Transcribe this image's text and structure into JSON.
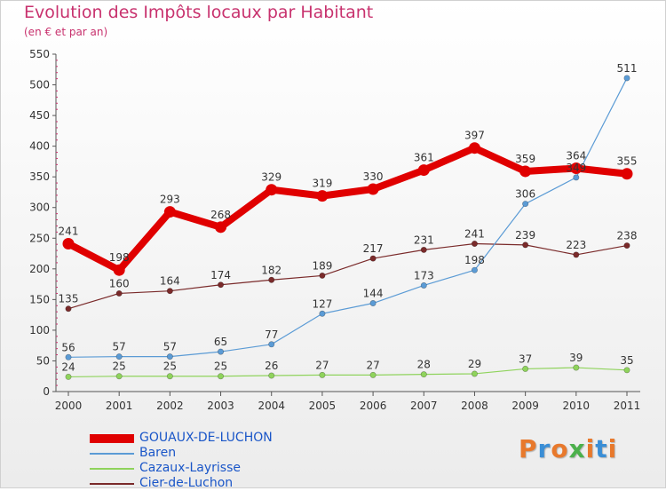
{
  "title": "Evolution des Impôts locaux par Habitant",
  "subtitle": "(en € et par an)",
  "logo": {
    "text": "Proxiti",
    "colors": [
      "#e8792c",
      "#3a8ed6",
      "#e8792c",
      "#4bb04b",
      "#e8792c",
      "#3a8ed6",
      "#e8792c"
    ]
  },
  "chart_data": {
    "type": "line",
    "x": [
      "2000",
      "2001",
      "2002",
      "2003",
      "2004",
      "2005",
      "2006",
      "2007",
      "2008",
      "2009",
      "2010",
      "2011"
    ],
    "ylim": [
      0,
      550
    ],
    "yticks": [
      0,
      50,
      100,
      150,
      200,
      250,
      300,
      350,
      400,
      450,
      500,
      550
    ],
    "grid": false,
    "legend_position": "bottom-left",
    "series": [
      {
        "name": "GOUAUX-DE-LUCHON",
        "color": "#e00000",
        "values": [
          241,
          198,
          293,
          268,
          329,
          319,
          330,
          361,
          397,
          359,
          364,
          355
        ]
      },
      {
        "name": "Baren",
        "color": "#5b9bd5",
        "values": [
          56,
          57,
          57,
          65,
          77,
          127,
          144,
          173,
          198,
          306,
          349,
          511
        ]
      },
      {
        "name": "Cazaux-Layrisse",
        "color": "#8fd35c",
        "values": [
          24,
          25,
          25,
          25,
          26,
          27,
          27,
          28,
          29,
          37,
          39,
          35
        ]
      },
      {
        "name": "Cier-de-Luchon",
        "color": "#7a2a2a",
        "values": [
          135,
          160,
          164,
          174,
          182,
          189,
          217,
          231,
          241,
          239,
          223,
          238
        ]
      }
    ]
  }
}
